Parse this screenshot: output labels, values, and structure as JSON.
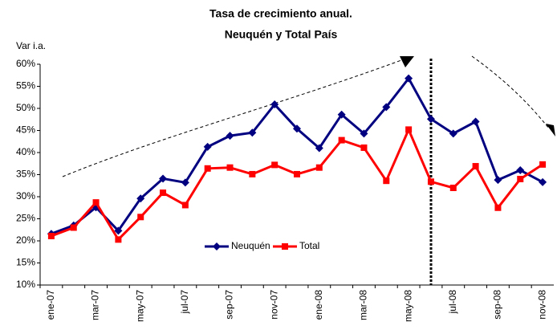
{
  "chart_data": {
    "type": "line",
    "title": [
      "Tasa de crecimiento anual.",
      "Neuquén y Total País"
    ],
    "y_label": "Var i.a.",
    "categories": [
      "ene-07",
      null,
      "mar-07",
      null,
      "may-07",
      null,
      "jul-07",
      null,
      "sep-07",
      null,
      "nov-07",
      null,
      "ene-08",
      null,
      "mar-08",
      null,
      "may-08",
      null,
      "jul-08",
      null,
      "sep-08",
      null,
      "nov-08"
    ],
    "series": [
      {
        "name": "Neuquén",
        "color": "#000080",
        "marker": "diamond",
        "values": [
          21.6,
          23.5,
          27.6,
          22.3,
          29.6,
          34.1,
          33.2,
          41.3,
          43.8,
          44.5,
          50.9,
          45.4,
          41.0,
          48.6,
          44.3,
          50.3,
          56.8,
          47.6,
          44.3,
          47.0,
          33.8,
          36.0,
          33.3
        ]
      },
      {
        "name": "Total",
        "color": "#ff0000",
        "marker": "square",
        "values": [
          21.1,
          23.0,
          28.7,
          20.3,
          25.4,
          30.9,
          28.1,
          36.4,
          36.6,
          35.1,
          37.2,
          35.1,
          36.6,
          42.8,
          41.1,
          33.6,
          45.2,
          33.4,
          32.0,
          36.9,
          27.5,
          34.0,
          37.3
        ]
      }
    ],
    "ylim": [
      10,
      60
    ],
    "yticks": [
      {
        "value": 10,
        "label": "10%"
      },
      {
        "value": 15,
        "label": "15%"
      },
      {
        "value": 20,
        "label": "20%"
      },
      {
        "value": 25,
        "label": "25%"
      },
      {
        "value": 30,
        "label": "30%"
      },
      {
        "value": 35,
        "label": "35%"
      },
      {
        "value": 40,
        "label": "40%"
      },
      {
        "value": 45,
        "label": "45%"
      },
      {
        "value": 50,
        "label": "50%"
      },
      {
        "value": 55,
        "label": "55%"
      },
      {
        "value": 60,
        "label": "60%"
      }
    ],
    "grid": false
  }
}
